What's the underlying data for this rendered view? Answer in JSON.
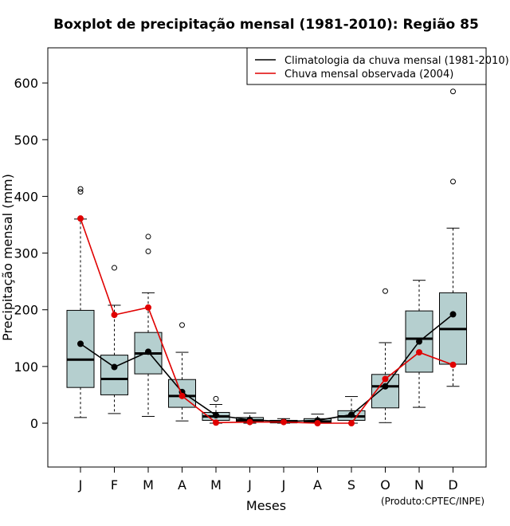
{
  "chart_data": {
    "type": "boxplot",
    "title": "Boxplot de precipitação mensal (1981-2010): Região 85",
    "xlabel": "Meses",
    "ylabel": "Precipitação mensal (mm)",
    "ylim": [
      -80,
      675
    ],
    "yticks": [
      0,
      100,
      200,
      300,
      400,
      500,
      600
    ],
    "categories": [
      "J",
      "F",
      "M",
      "A",
      "M",
      "J",
      "J",
      "A",
      "S",
      "O",
      "N",
      "D"
    ],
    "box_color": "#b5cfcf",
    "boxes": [
      {
        "whisker_low": 10,
        "q1": 63,
        "median": 112,
        "q3": 199,
        "whisker_high": 360,
        "outliers": [
          408,
          413
        ]
      },
      {
        "whisker_low": 17,
        "q1": 50,
        "median": 78,
        "q3": 120,
        "whisker_high": 208,
        "outliers": [
          274
        ]
      },
      {
        "whisker_low": 12,
        "q1": 87,
        "median": 123,
        "q3": 160,
        "whisker_high": 230,
        "outliers": [
          303,
          329
        ]
      },
      {
        "whisker_low": 4,
        "q1": 28,
        "median": 48,
        "q3": 77,
        "whisker_high": 125,
        "outliers": [
          173
        ]
      },
      {
        "whisker_low": 0,
        "q1": 5,
        "median": 12,
        "q3": 19,
        "whisker_high": 33,
        "outliers": [
          43
        ]
      },
      {
        "whisker_low": 0,
        "q1": 2,
        "median": 5,
        "q3": 10,
        "whisker_high": 18,
        "outliers": []
      },
      {
        "whisker_low": 0,
        "q1": 1,
        "median": 2,
        "q3": 5,
        "whisker_high": 8,
        "outliers": []
      },
      {
        "whisker_low": 0,
        "q1": 1,
        "median": 3,
        "q3": 8,
        "whisker_high": 16,
        "outliers": []
      },
      {
        "whisker_low": 0,
        "q1": 5,
        "median": 12,
        "q3": 22,
        "whisker_high": 47,
        "outliers": []
      },
      {
        "whisker_low": 1,
        "q1": 27,
        "median": 65,
        "q3": 86,
        "whisker_high": 142,
        "outliers": [
          233
        ]
      },
      {
        "whisker_low": 28,
        "q1": 90,
        "median": 149,
        "q3": 198,
        "whisker_high": 252,
        "outliers": []
      },
      {
        "whisker_low": 65,
        "q1": 104,
        "median": 166,
        "q3": 230,
        "whisker_high": 344,
        "outliers": [
          426,
          585
        ]
      }
    ],
    "series": [
      {
        "name": "Climatologia da chuva mensal (1981-2010)",
        "color": "#000000",
        "values": [
          140,
          99,
          126,
          55,
          14,
          6,
          3,
          5,
          15,
          65,
          144,
          192
        ]
      },
      {
        "name": "Chuva mensal observada (2004)",
        "color": "#e00000",
        "values": [
          361,
          191,
          204,
          48,
          1,
          2,
          2,
          0,
          0,
          78,
          125,
          103
        ]
      }
    ],
    "legend_position": "top-right",
    "credit": "(Produto:CPTEC/INPE)"
  }
}
